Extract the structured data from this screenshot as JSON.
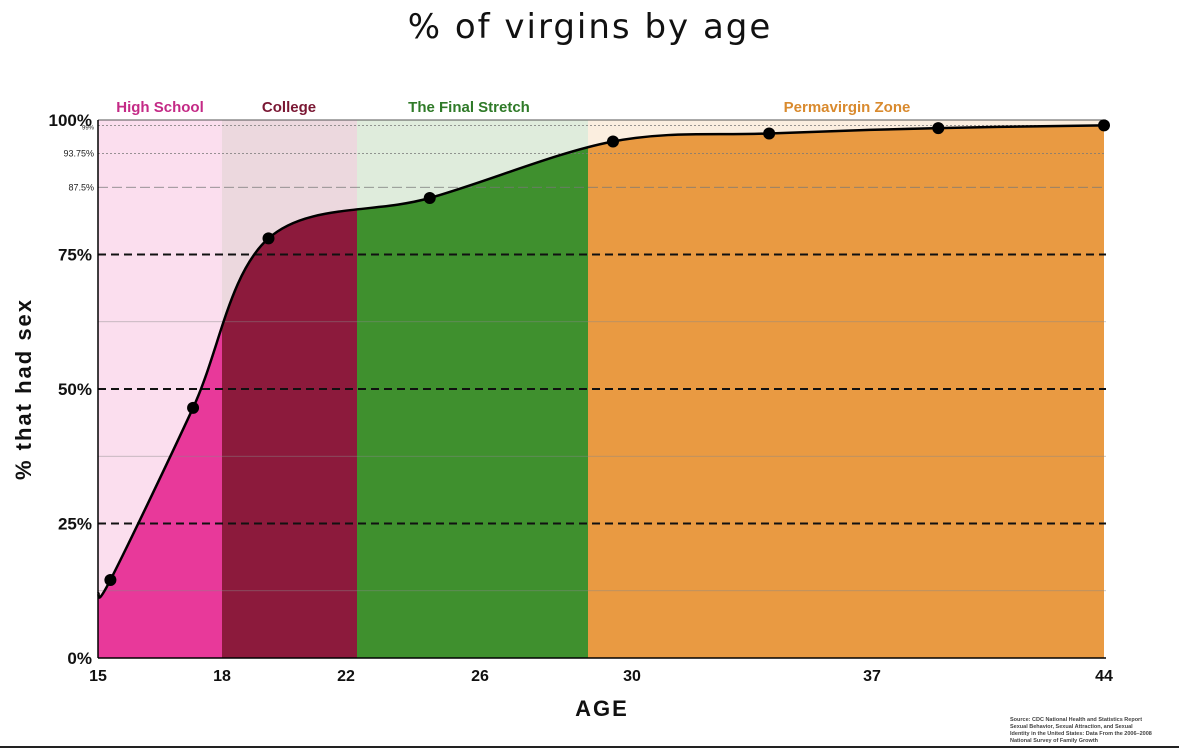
{
  "chart_data": {
    "type": "area",
    "title": "% of virgins by age",
    "xlabel": "AGE",
    "ylabel": "% that had sex",
    "x_ticks": [
      "15",
      "18",
      "22",
      "26",
      "30",
      "37",
      "44"
    ],
    "y_major_ticks": [
      {
        "value": 0,
        "label": "0%"
      },
      {
        "value": 25,
        "label": "25%"
      },
      {
        "value": 50,
        "label": "50%"
      },
      {
        "value": 75,
        "label": "75%"
      },
      {
        "value": 100,
        "label": "100%"
      }
    ],
    "y_minor_ticks": [
      {
        "value": 87.5,
        "label": "87.5%"
      },
      {
        "value": 93.75,
        "label": "93.75%"
      },
      {
        "value": 99,
        "label": "99%"
      }
    ],
    "ylim": [
      0,
      100
    ],
    "zones": [
      {
        "name": "High School",
        "from": "15",
        "to": "18",
        "color": "#e8399a",
        "label_color": "#c42a86"
      },
      {
        "name": "College",
        "from": "18",
        "to": "22",
        "color": "#8c1a3c",
        "label_color": "#7a1733"
      },
      {
        "name": "The Final Stretch",
        "from": "22",
        "to": "30",
        "color": "#3f902e",
        "label_color": "#2f7a28"
      },
      {
        "name": "Permavirgin Zone",
        "from": "30",
        "to": "44",
        "color": "#e99a42",
        "label_color": "#d98a2e"
      }
    ],
    "points": [
      {
        "x": 15.3,
        "y": 14.5
      },
      {
        "x": 17.3,
        "y": 46.5
      },
      {
        "x": 19.5,
        "y": 78
      },
      {
        "x": 24.5,
        "y": 85.5
      },
      {
        "x": 29.5,
        "y": 96
      },
      {
        "x": 34,
        "y": 97.5
      },
      {
        "x": 39,
        "y": 98.5
      },
      {
        "x": 44,
        "y": 99
      }
    ]
  },
  "source": {
    "lines": [
      "Source: CDC National Health and Statistics Report",
      "Sexual Behavior, Sexual Attraction, and Sexual",
      "Identity in the United States: Data From the 2006–2008",
      "National Survey of Family Growth"
    ]
  }
}
